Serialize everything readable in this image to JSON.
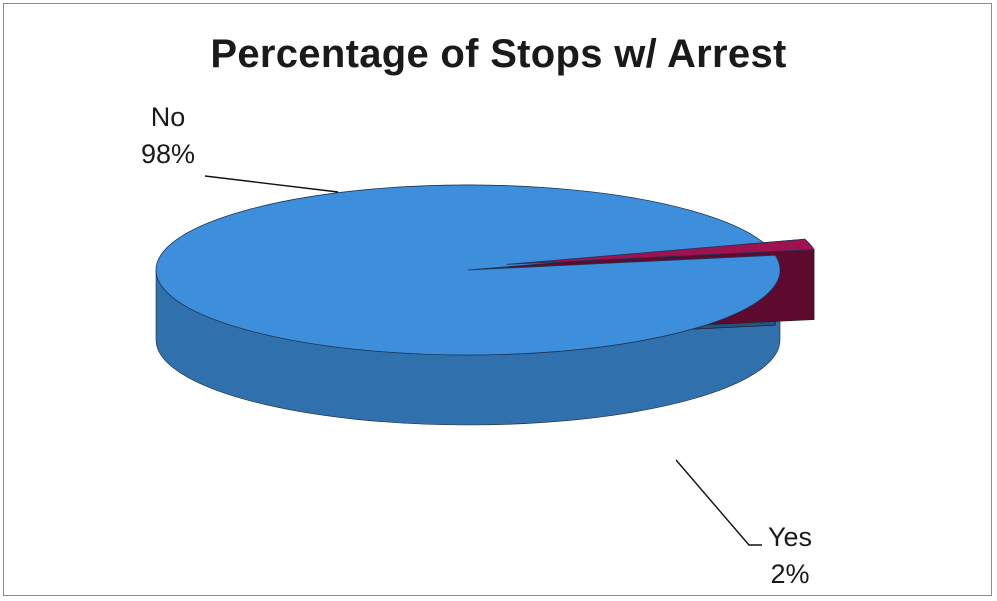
{
  "chart_data": {
    "type": "pie",
    "title": "Percentage of Stops w/ Arrest",
    "slices": [
      {
        "category": "No",
        "value": 98,
        "label": "98%",
        "color": "#3d8fdc"
      },
      {
        "category": "Yes",
        "value": 2,
        "label": "2%",
        "color": "#a0114f"
      }
    ],
    "style": "3d-exploded",
    "legend": "none"
  }
}
